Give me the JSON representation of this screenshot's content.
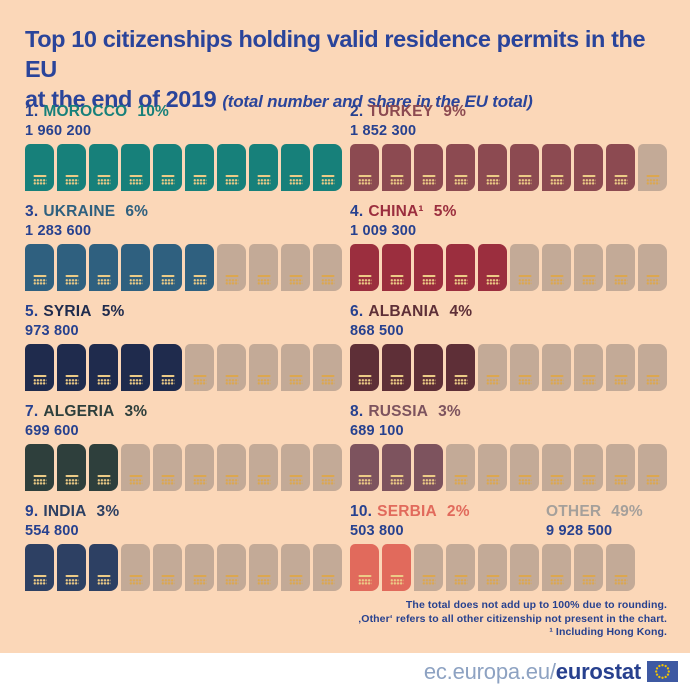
{
  "header": {
    "title_line1": "Top 10 citizenships holding valid residence permits in the EU",
    "title_line2": "at the end of 2019",
    "subtitle": "(total number and share in the EU total)"
  },
  "chart_data": {
    "type": "pictogram",
    "icon": "passport",
    "slots_per_row": 10,
    "note": "1 passport icon = 1 percentage point of the EU total",
    "items": [
      {
        "rank": "1.",
        "name": "MOROCCO",
        "pct": "10%",
        "value": "1 960 200",
        "filled": 10,
        "slots": 10,
        "color": "#17807a"
      },
      {
        "rank": "2.",
        "name": "TURKEY",
        "pct": "9%",
        "value": "1 852 300",
        "filled": 9,
        "slots": 10,
        "color": "#8c4a51"
      },
      {
        "rank": "3.",
        "name": "UKRAINE",
        "pct": "6%",
        "value": "1 283 600",
        "filled": 6,
        "slots": 10,
        "color": "#2f607f"
      },
      {
        "rank": "4.",
        "name": "CHINA¹",
        "pct": "5%",
        "value": "1 009 300",
        "filled": 5,
        "slots": 10,
        "color": "#9b2e3e"
      },
      {
        "rank": "5.",
        "name": "SYRIA",
        "pct": "5%",
        "value": "973 800",
        "filled": 5,
        "slots": 10,
        "color": "#1f2b4d"
      },
      {
        "rank": "6.",
        "name": "ALBANIA",
        "pct": "4%",
        "value": "868 500",
        "filled": 4,
        "slots": 10,
        "color": "#5e2f37"
      },
      {
        "rank": "7.",
        "name": "ALGERIA",
        "pct": "3%",
        "value": "699 600",
        "filled": 3,
        "slots": 10,
        "color": "#2e3f3c"
      },
      {
        "rank": "8.",
        "name": "RUSSIA",
        "pct": "3%",
        "value": "689 100",
        "filled": 3,
        "slots": 10,
        "color": "#7d535e"
      },
      {
        "rank": "9.",
        "name": "INDIA",
        "pct": "3%",
        "value": "554 800",
        "filled": 3,
        "slots": 10,
        "color": "#2d4063"
      },
      {
        "rank": "10.",
        "name": "SERBIA",
        "pct": "2%",
        "value": "503 800",
        "filled": 2,
        "slots": 9,
        "color": "#e16a5c"
      }
    ],
    "other": {
      "label": "OTHER",
      "pct": "49%",
      "value": "9 928 500"
    }
  },
  "notes": {
    "line1": "The total does not add up to 100% due to rounding.",
    "line2": "‚Other‘ refers to all other citizenship not present in the chart.",
    "line3": "¹ Including Hong Kong."
  },
  "footer": {
    "url_regular": "ec.europa.eu/",
    "url_bold": "eurostat"
  },
  "colors": {
    "background": "#fbd7b8",
    "text_blue": "#27418f",
    "title_blue": "#2a449a",
    "inactive_passport": "#c3aa97",
    "other_gray": "#a5a09b",
    "emblem_gold_filled": "#eccb86",
    "emblem_gold_inactive": "#dca74f",
    "footer_url_gray": "#8da2c2",
    "footer_url_blue": "#27408e",
    "eu_flag_blue": "#3e59a2",
    "eu_star_yellow": "#f3c500"
  }
}
